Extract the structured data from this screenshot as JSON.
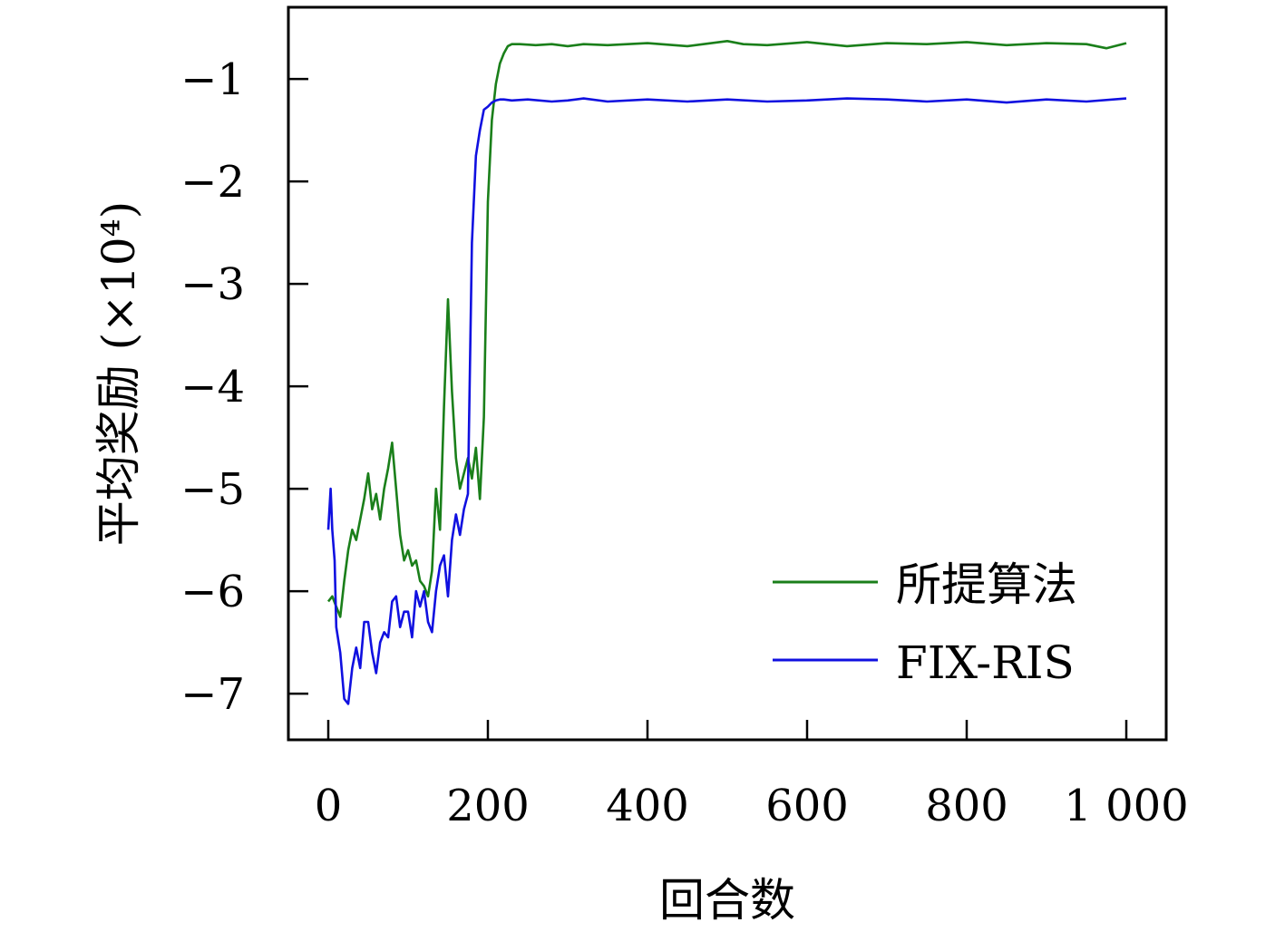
{
  "chart_data": {
    "type": "line",
    "title": "",
    "xlabel": "回合数",
    "ylabel": "平均奖励 (×10⁴)",
    "xlim": [
      -50,
      1050
    ],
    "ylim": [
      -7.45,
      -0.3
    ],
    "xticks": [
      0,
      200,
      400,
      600,
      800,
      1000
    ],
    "xtick_labels": [
      "0",
      "200",
      "400",
      "600",
      "800",
      "1 000"
    ],
    "yticks": [
      -1,
      -2,
      -3,
      -4,
      -5,
      -6,
      -7
    ],
    "ytick_labels": [
      "−1",
      "−2",
      "−3",
      "−4",
      "−5",
      "−6",
      "−7"
    ],
    "grid": false,
    "legend_position": "bottom-right",
    "series": [
      {
        "name": "所提算法",
        "color": "#1a7f1a",
        "x": [
          0,
          5,
          10,
          15,
          20,
          25,
          30,
          35,
          40,
          45,
          50,
          55,
          60,
          65,
          70,
          75,
          80,
          85,
          90,
          95,
          100,
          105,
          110,
          115,
          120,
          125,
          130,
          135,
          140,
          145,
          150,
          155,
          160,
          165,
          170,
          175,
          180,
          185,
          190,
          195,
          200,
          205,
          210,
          215,
          220,
          225,
          230,
          240,
          260,
          280,
          300,
          320,
          350,
          400,
          450,
          500,
          520,
          550,
          600,
          650,
          700,
          750,
          800,
          850,
          900,
          950,
          975,
          1000
        ],
        "y": [
          -6.1,
          -6.05,
          -6.15,
          -6.25,
          -5.9,
          -5.6,
          -5.4,
          -5.5,
          -5.3,
          -5.1,
          -4.85,
          -5.2,
          -5.05,
          -5.3,
          -5.0,
          -4.8,
          -4.55,
          -5.0,
          -5.45,
          -5.7,
          -5.6,
          -5.75,
          -5.7,
          -5.9,
          -5.95,
          -6.05,
          -5.8,
          -5.0,
          -5.4,
          -4.2,
          -3.15,
          -4.05,
          -4.7,
          -5.0,
          -4.85,
          -4.7,
          -4.9,
          -4.6,
          -5.1,
          -4.3,
          -2.2,
          -1.4,
          -1.05,
          -0.85,
          -0.75,
          -0.68,
          -0.66,
          -0.66,
          -0.67,
          -0.66,
          -0.68,
          -0.66,
          -0.67,
          -0.65,
          -0.68,
          -0.63,
          -0.66,
          -0.67,
          -0.64,
          -0.68,
          -0.65,
          -0.66,
          -0.64,
          -0.67,
          -0.65,
          -0.66,
          -0.7,
          -0.65
        ]
      },
      {
        "name": "FIX-RIS",
        "color": "#1010e0",
        "x": [
          0,
          3,
          5,
          8,
          10,
          15,
          20,
          25,
          30,
          35,
          40,
          45,
          50,
          55,
          60,
          65,
          70,
          75,
          80,
          85,
          90,
          95,
          100,
          105,
          110,
          115,
          120,
          125,
          130,
          135,
          140,
          145,
          150,
          155,
          160,
          165,
          170,
          175,
          180,
          185,
          190,
          195,
          200,
          205,
          210,
          215,
          220,
          230,
          250,
          280,
          300,
          320,
          350,
          400,
          450,
          500,
          550,
          600,
          650,
          700,
          750,
          800,
          850,
          900,
          950,
          1000
        ],
        "y": [
          -5.4,
          -5.0,
          -5.4,
          -5.7,
          -6.35,
          -6.6,
          -7.05,
          -7.1,
          -6.75,
          -6.55,
          -6.75,
          -6.3,
          -6.3,
          -6.6,
          -6.8,
          -6.5,
          -6.4,
          -6.45,
          -6.1,
          -6.05,
          -6.35,
          -6.2,
          -6.2,
          -6.45,
          -6.0,
          -6.15,
          -6.0,
          -6.3,
          -6.4,
          -6.0,
          -5.75,
          -5.65,
          -6.05,
          -5.5,
          -5.25,
          -5.45,
          -5.2,
          -5.05,
          -2.6,
          -1.75,
          -1.5,
          -1.3,
          -1.27,
          -1.23,
          -1.21,
          -1.2,
          -1.2,
          -1.21,
          -1.2,
          -1.22,
          -1.21,
          -1.19,
          -1.22,
          -1.2,
          -1.22,
          -1.2,
          -1.22,
          -1.21,
          -1.19,
          -1.2,
          -1.22,
          -1.2,
          -1.23,
          -1.2,
          -1.22,
          -1.19
        ]
      }
    ]
  }
}
